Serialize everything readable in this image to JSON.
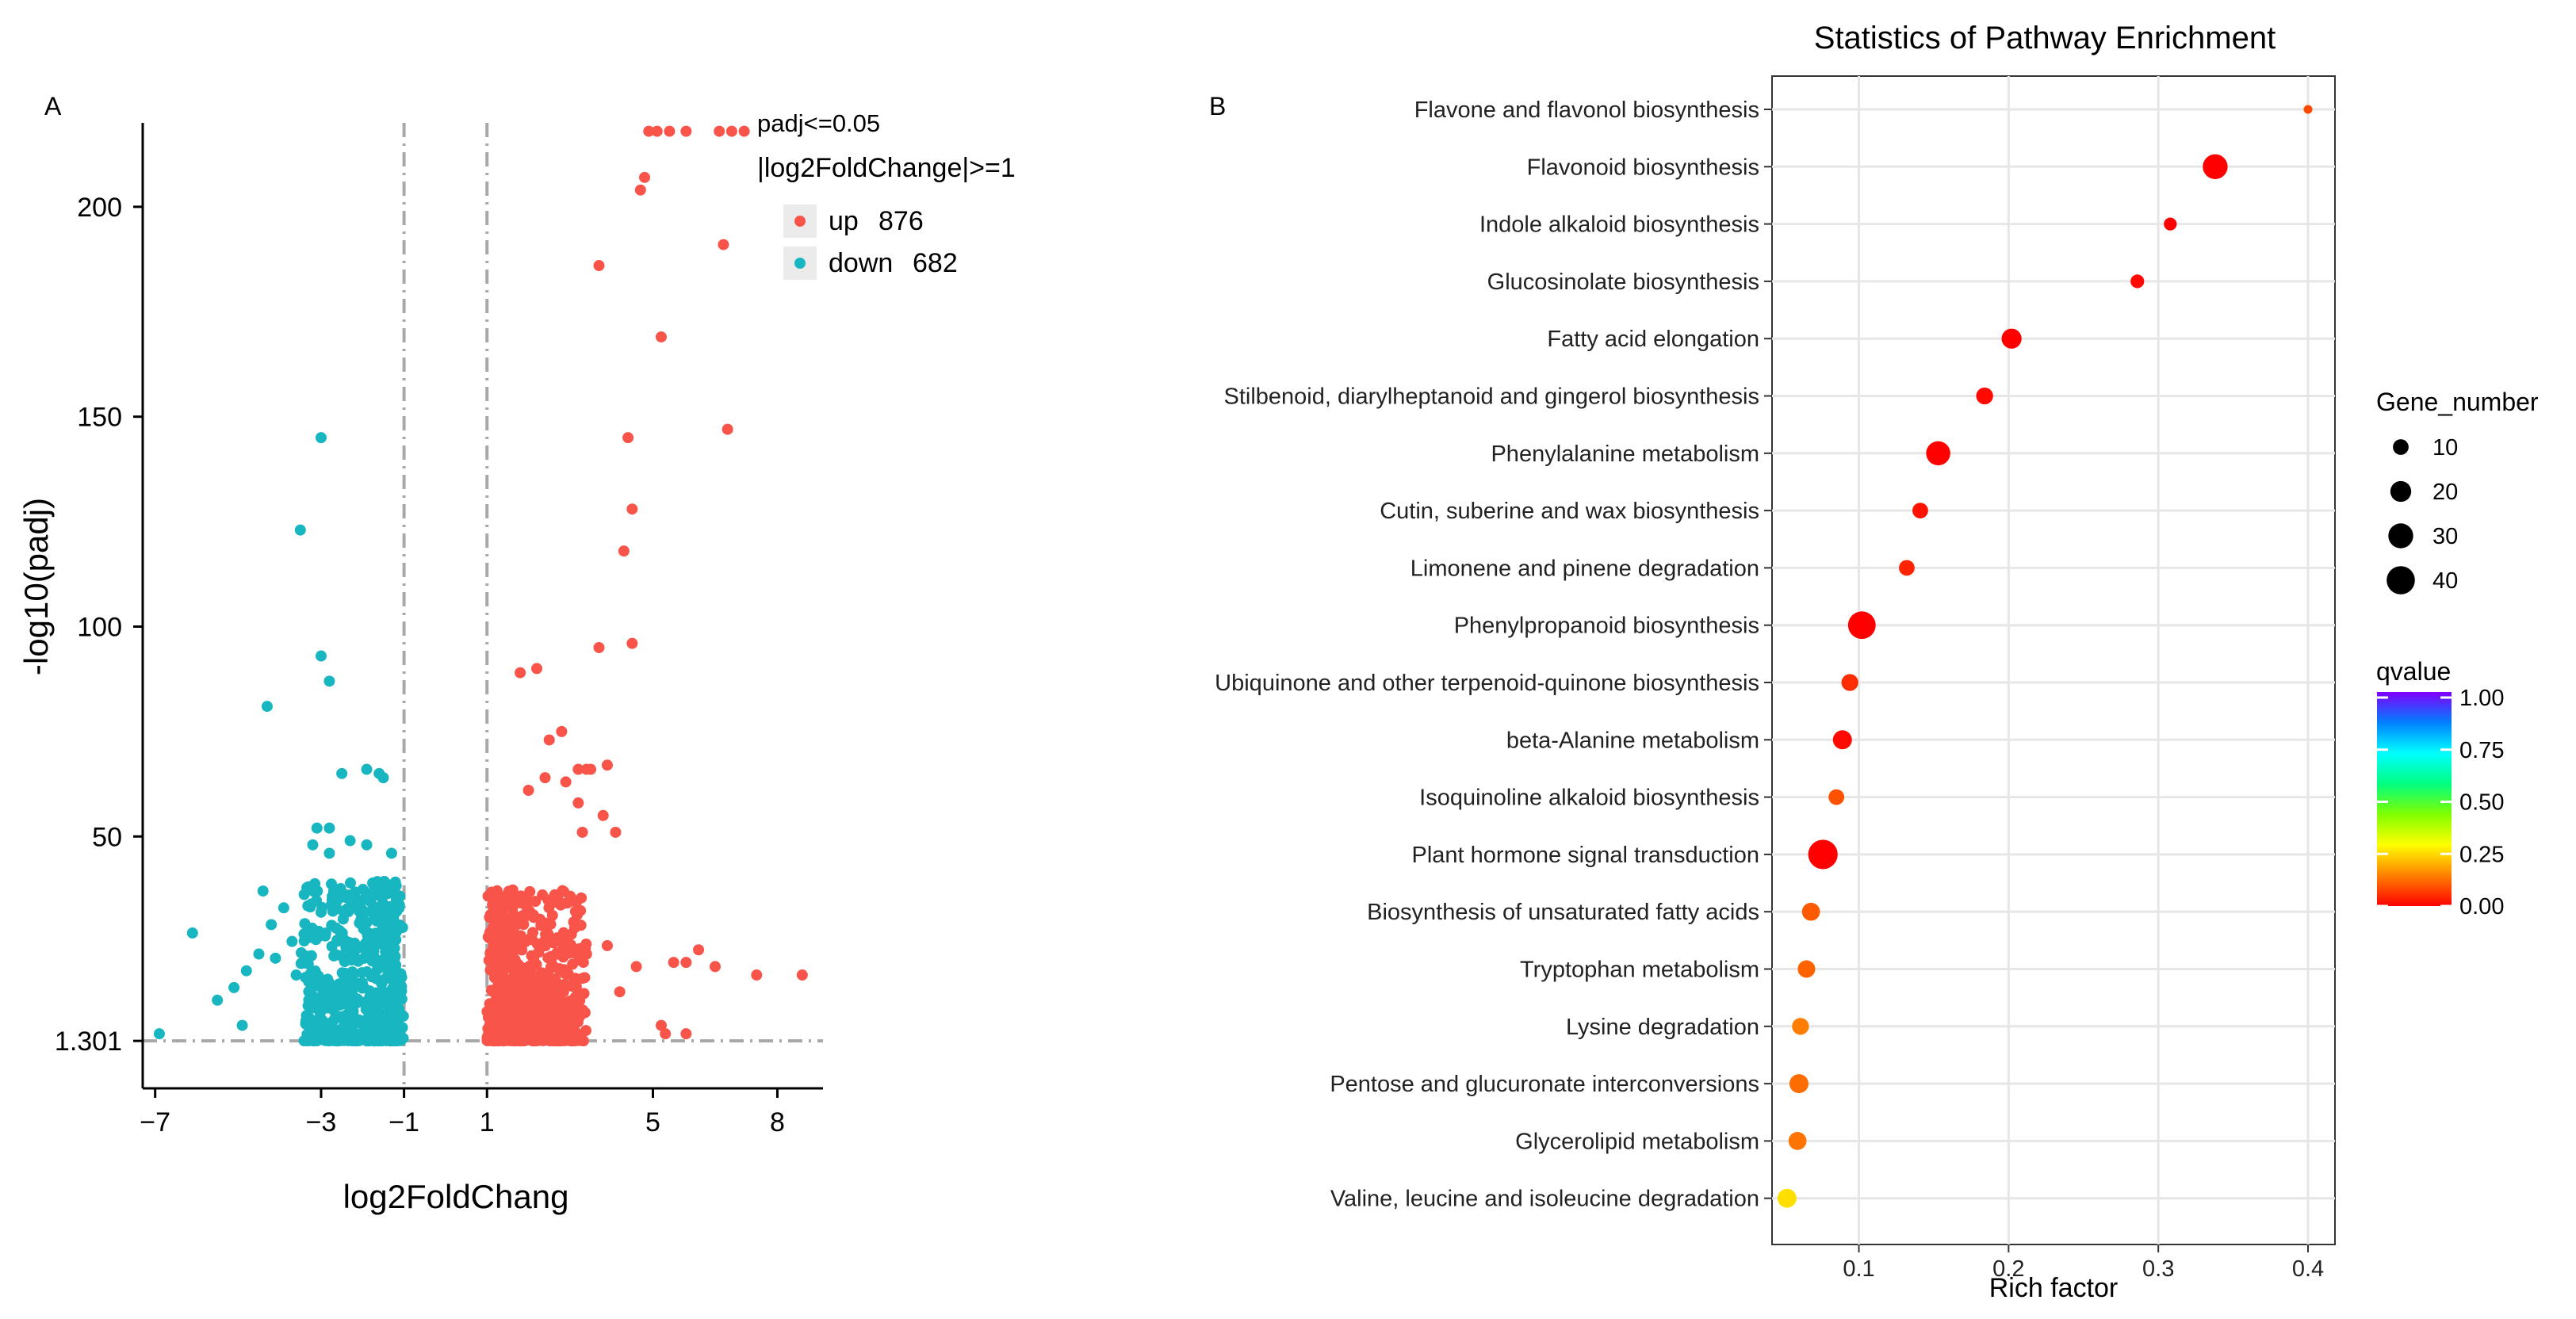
{
  "chart_data": [
    {
      "type": "scatter",
      "panel": "A",
      "title": "",
      "xlabel": "log2FoldChang",
      "ylabel": "-log10(padj)",
      "xlim": [
        -7.3,
        9.1
      ],
      "ylim": [
        -10,
        220
      ],
      "xticks": [
        -7,
        -3,
        -1,
        1,
        5,
        8
      ],
      "yticks": [
        1.301,
        50,
        100,
        150,
        200
      ],
      "ytick_labels": [
        "1.301",
        "50",
        "100",
        "150",
        "200"
      ],
      "vlines": [
        -1,
        1
      ],
      "hline": 1.301,
      "colors": {
        "up": "#f8544a",
        "down": "#17b6c0"
      },
      "legend": {
        "title1": "padj<=0.05",
        "title2": "|log2FoldChange|>=1",
        "items": [
          {
            "key": "up",
            "label": "up",
            "count": "876"
          },
          {
            "key": "down",
            "label": "down",
            "count": "682"
          }
        ]
      },
      "series": [
        {
          "name": "up",
          "points": [
            [
              6.6,
              218
            ],
            [
              7.2,
              218
            ],
            [
              5.1,
              218
            ],
            [
              5.4,
              218
            ],
            [
              5.8,
              218
            ],
            [
              6.9,
              218
            ],
            [
              4.9,
              218
            ],
            [
              4.8,
              207
            ],
            [
              4.7,
              204
            ],
            [
              6.7,
              191
            ],
            [
              3.7,
              186
            ],
            [
              5.2,
              169
            ],
            [
              4.4,
              145
            ],
            [
              6.8,
              147
            ],
            [
              4.5,
              128
            ],
            [
              4.3,
              118
            ],
            [
              4.5,
              96
            ],
            [
              3.7,
              95
            ],
            [
              2.2,
              90
            ],
            [
              1.8,
              89
            ],
            [
              2.8,
              75
            ],
            [
              2.5,
              73
            ],
            [
              3.2,
              66
            ],
            [
              3.9,
              67
            ],
            [
              2.9,
              63
            ],
            [
              2.0,
              61
            ],
            [
              2.4,
              64
            ],
            [
              3.4,
              66
            ],
            [
              3.5,
              66
            ],
            [
              4.1,
              51
            ],
            [
              3.2,
              58
            ],
            [
              3.8,
              55
            ],
            [
              3.3,
              51
            ],
            [
              6.1,
              23
            ],
            [
              5.5,
              20
            ],
            [
              5.8,
              20
            ],
            [
              6.5,
              19
            ],
            [
              7.5,
              17
            ],
            [
              8.6,
              17
            ],
            [
              3.4,
              22
            ],
            [
              3.9,
              24
            ],
            [
              4.6,
              19
            ],
            [
              3.1,
              16
            ],
            [
              4.2,
              13
            ],
            [
              5.2,
              5
            ],
            [
              5.3,
              3
            ],
            [
              5.8,
              3
            ]
          ]
        },
        {
          "name": "down",
          "points": [
            [
              -3.0,
              145
            ],
            [
              -3.5,
              123
            ],
            [
              -3.0,
              93
            ],
            [
              -2.8,
              87
            ],
            [
              -4.3,
              81
            ],
            [
              -1.9,
              66
            ],
            [
              -1.6,
              65
            ],
            [
              -1.5,
              64
            ],
            [
              -2.5,
              65
            ],
            [
              -3.1,
              52
            ],
            [
              -2.8,
              52
            ],
            [
              -2.3,
              49
            ],
            [
              -1.9,
              48
            ],
            [
              -1.3,
              46
            ],
            [
              -3.2,
              48
            ],
            [
              -2.8,
              46
            ],
            [
              -6.1,
              27
            ],
            [
              -4.4,
              37
            ],
            [
              -3.3,
              38
            ],
            [
              -3.9,
              33
            ],
            [
              -4.2,
              29
            ],
            [
              -5.1,
              14
            ],
            [
              -5.5,
              11
            ],
            [
              -6.9,
              3
            ],
            [
              -3.6,
              17
            ],
            [
              -4.1,
              21
            ],
            [
              -4.5,
              22
            ],
            [
              -4.8,
              18
            ],
            [
              -4.9,
              5
            ],
            [
              -3.7,
              25
            ],
            [
              -2.6,
              35
            ]
          ]
        }
      ],
      "dense_clusters": [
        {
          "series": "up",
          "center": [
            1.6,
            8
          ],
          "spread": [
            1.1,
            11
          ],
          "count": 750
        },
        {
          "series": "down",
          "center": [
            -1.9,
            8
          ],
          "spread": [
            1.1,
            12
          ],
          "count": 620
        }
      ]
    },
    {
      "type": "scatter",
      "panel": "B",
      "title": "Statistics of Pathway Enrichment",
      "xlabel": "Rich factor",
      "ylabel": "",
      "xlim": [
        0.042,
        0.418
      ],
      "xticks": [
        0.1,
        0.2,
        0.3,
        0.4
      ],
      "xtick_labels": [
        "0.1",
        "0.2",
        "0.3",
        "0.4"
      ],
      "categories": [
        "Flavone and flavonol biosynthesis",
        "Flavonoid biosynthesis",
        "Indole alkaloid biosynthesis",
        "Glucosinolate biosynthesis",
        "Fatty acid elongation",
        "Stilbenoid, diarylheptanoid and gingerol biosynthesis",
        "Phenylalanine metabolism",
        "Cutin, suberine and wax biosynthesis",
        "Limonene and pinene degradation",
        "Phenylpropanoid biosynthesis",
        "Ubiquinone and other terpenoid-quinone biosynthesis",
        "beta-Alanine metabolism",
        "Isoquinoline alkaloid biosynthesis",
        "Plant hormone signal transduction",
        "Biosynthesis of unsaturated fatty acids",
        "Tryptophan metabolism",
        "Lysine degradation",
        "Pentose and glucuronate interconversions",
        "Glycerolipid metabolism",
        "Valine, leucine and isoleucine degradation"
      ],
      "rich_factor": [
        0.4,
        0.338,
        0.308,
        0.286,
        0.202,
        0.184,
        0.153,
        0.141,
        0.132,
        0.102,
        0.094,
        0.089,
        0.085,
        0.076,
        0.068,
        0.065,
        0.061,
        0.06,
        0.059,
        0.052
      ],
      "gene_number": [
        2,
        30,
        6,
        7,
        18,
        12,
        28,
        10,
        10,
        38,
        12,
        16,
        10,
        44,
        14,
        13,
        12,
        16,
        14,
        16
      ],
      "qvalue": [
        0.08,
        0.0,
        0.0,
        0.01,
        0.0,
        0.01,
        0.0,
        0.02,
        0.04,
        0.0,
        0.05,
        0.01,
        0.09,
        0.0,
        0.1,
        0.11,
        0.14,
        0.12,
        0.13,
        0.25
      ],
      "size_legend": {
        "title": "Gene_number",
        "values": [
          10,
          20,
          30,
          40
        ],
        "labels": [
          "10",
          "20",
          "30",
          "40"
        ]
      },
      "color_legend": {
        "title": "qvalue",
        "ticks": [
          "1.00",
          "0.75",
          "0.50",
          "0.25",
          "0.00"
        ],
        "stops": [
          "#ff0000",
          "#ff8000",
          "#ffff00",
          "#80ff00",
          "#00ff80",
          "#00ffff",
          "#0080ff",
          "#8000ff"
        ]
      },
      "grid": true
    }
  ],
  "panels": {
    "a_label": "A",
    "b_label": "B"
  }
}
